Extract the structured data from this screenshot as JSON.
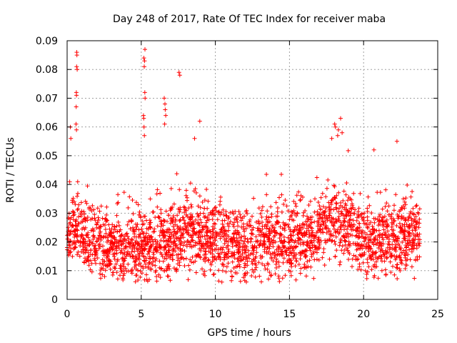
{
  "chart_data": {
    "type": "scatter",
    "title": "Day 248 of 2017, Rate Of TEC Index for receiver maba",
    "xlabel": "GPS time / hours",
    "ylabel": "ROTI / TECUs",
    "xlim": [
      0,
      25
    ],
    "ylim": [
      0,
      0.09
    ],
    "x_ticks": [
      0,
      5,
      10,
      15,
      20,
      25
    ],
    "x_tick_labels": [
      "0",
      "5",
      "10",
      "15",
      "20",
      "25"
    ],
    "y_ticks": [
      0,
      0.01,
      0.02,
      0.03,
      0.04,
      0.05,
      0.06,
      0.07,
      0.08,
      0.09
    ],
    "y_tick_labels": [
      "0",
      "0.01",
      "0.02",
      "0.03",
      "0.04",
      "0.05",
      "0.06",
      "0.07",
      "0.08",
      "0.09"
    ],
    "grid": true,
    "marker": "+",
    "color": "#ff0000",
    "x_range": [
      0.0,
      23.8
    ],
    "baseline": [
      [
        0.0,
        0.022
      ],
      [
        0.5,
        0.026
      ],
      [
        1.0,
        0.022
      ],
      [
        2.0,
        0.019
      ],
      [
        3.0,
        0.018
      ],
      [
        4.0,
        0.017
      ],
      [
        5.0,
        0.02
      ],
      [
        6.0,
        0.017
      ],
      [
        7.0,
        0.02
      ],
      [
        8.0,
        0.024
      ],
      [
        9.0,
        0.022
      ],
      [
        10.0,
        0.021
      ],
      [
        11.0,
        0.019
      ],
      [
        12.0,
        0.018
      ],
      [
        13.0,
        0.019
      ],
      [
        14.0,
        0.021
      ],
      [
        15.0,
        0.02
      ],
      [
        16.0,
        0.021
      ],
      [
        17.0,
        0.025
      ],
      [
        18.0,
        0.027
      ],
      [
        19.0,
        0.025
      ],
      [
        20.0,
        0.021
      ],
      [
        21.0,
        0.02
      ],
      [
        22.0,
        0.02
      ],
      [
        23.0,
        0.021
      ],
      [
        23.8,
        0.021
      ]
    ],
    "peaks": [
      {
        "x": 0.65,
        "y": 0.086
      },
      {
        "x": 0.66,
        "y": 0.085
      },
      {
        "x": 0.64,
        "y": 0.081
      },
      {
        "x": 0.68,
        "y": 0.08
      },
      {
        "x": 0.62,
        "y": 0.072
      },
      {
        "x": 0.63,
        "y": 0.071
      },
      {
        "x": 0.61,
        "y": 0.067
      },
      {
        "x": 0.6,
        "y": 0.061
      },
      {
        "x": 0.63,
        "y": 0.059
      },
      {
        "x": 0.22,
        "y": 0.06
      },
      {
        "x": 0.25,
        "y": 0.056
      },
      {
        "x": 5.25,
        "y": 0.087
      },
      {
        "x": 5.18,
        "y": 0.084
      },
      {
        "x": 5.22,
        "y": 0.083
      },
      {
        "x": 5.2,
        "y": 0.081
      },
      {
        "x": 5.24,
        "y": 0.072
      },
      {
        "x": 5.26,
        "y": 0.07
      },
      {
        "x": 5.15,
        "y": 0.064
      },
      {
        "x": 5.17,
        "y": 0.063
      },
      {
        "x": 5.19,
        "y": 0.06
      },
      {
        "x": 5.21,
        "y": 0.057
      },
      {
        "x": 7.55,
        "y": 0.079
      },
      {
        "x": 7.6,
        "y": 0.078
      },
      {
        "x": 6.55,
        "y": 0.07
      },
      {
        "x": 6.6,
        "y": 0.068
      },
      {
        "x": 6.62,
        "y": 0.066
      },
      {
        "x": 6.65,
        "y": 0.064
      },
      {
        "x": 6.58,
        "y": 0.061
      },
      {
        "x": 8.95,
        "y": 0.062
      },
      {
        "x": 8.6,
        "y": 0.056
      },
      {
        "x": 18.05,
        "y": 0.061
      },
      {
        "x": 18.1,
        "y": 0.06
      },
      {
        "x": 18.45,
        "y": 0.063
      },
      {
        "x": 18.3,
        "y": 0.059
      },
      {
        "x": 18.55,
        "y": 0.058
      },
      {
        "x": 18.25,
        "y": 0.057
      },
      {
        "x": 17.85,
        "y": 0.056
      },
      {
        "x": 20.7,
        "y": 0.052
      },
      {
        "x": 22.25,
        "y": 0.055
      }
    ]
  }
}
